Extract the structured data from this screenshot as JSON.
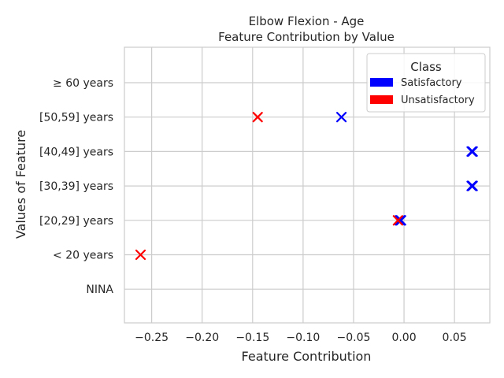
{
  "chart_data": {
    "type": "scatter",
    "title": "Elbow Flexion - Age",
    "subtitle": "Feature Contribution by Value",
    "xlabel": "Feature Contribution",
    "ylabel": "Values of Feature",
    "xlim": [
      -0.277,
      0.085
    ],
    "x_ticks": [
      -0.25,
      -0.2,
      -0.15,
      -0.1,
      -0.05,
      0.0,
      0.05
    ],
    "x_tick_labels": [
      "−0.25",
      "−0.20",
      "−0.15",
      "−0.10",
      "−0.05",
      "0.00",
      "0.05"
    ],
    "categories": [
      "NINA",
      "< 20 years",
      "[20,29] years",
      "[30,39] years",
      "[40,49] years",
      "[50,59] years",
      "≥ 60 years"
    ],
    "grid": true,
    "marker": "x",
    "legend": {
      "title": "Class",
      "placement": "top-right",
      "entries": [
        {
          "label": "Satisfactory",
          "color": "#0000ff"
        },
        {
          "label": "Unsatisfactory",
          "color": "#ff0000"
        }
      ]
    },
    "series": [
      {
        "name": "Satisfactory",
        "color": "#0000ff",
        "points": [
          {
            "category": "[50,59] years",
            "x": -0.062
          },
          {
            "category": "[40,49] years",
            "x": 0.067
          },
          {
            "category": "[40,49] years",
            "x": 0.068
          },
          {
            "category": "[30,39] years",
            "x": 0.067
          },
          {
            "category": "[30,39] years",
            "x": 0.068
          },
          {
            "category": "[20,29] years",
            "x": -0.003
          },
          {
            "category": "[20,29] years",
            "x": -0.004
          }
        ]
      },
      {
        "name": "Unsatisfactory",
        "color": "#ff0000",
        "points": [
          {
            "category": "[50,59] years",
            "x": -0.145
          },
          {
            "category": "[20,29] years",
            "x": -0.006
          },
          {
            "category": "< 20 years",
            "x": -0.261
          }
        ]
      }
    ]
  }
}
